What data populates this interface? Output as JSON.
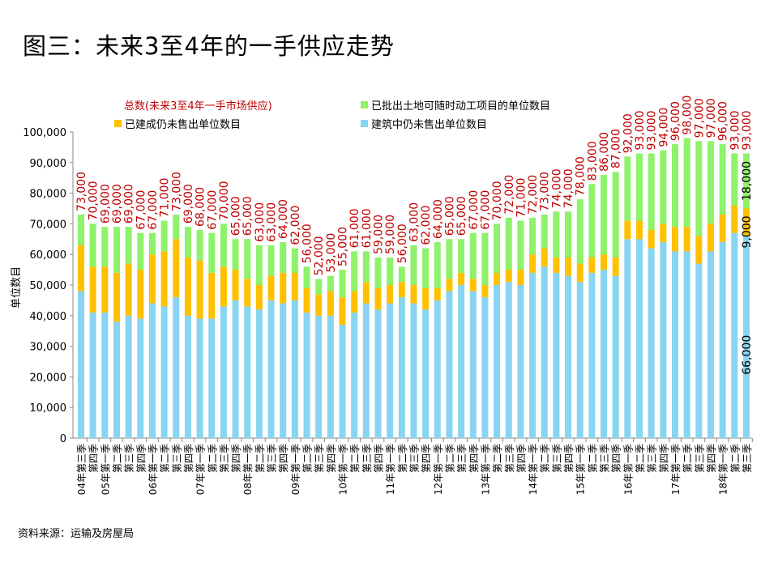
{
  "title": "图三：未来3至4年的一手供应走势",
  "source": "资料来源：运输及房屋局",
  "chart_data": {
    "type": "bar",
    "stacked": true,
    "title": "图三：未来3至4年的一手供应走势",
    "ylabel": "单位数目",
    "xlabel": "",
    "ylim": [
      0,
      100000
    ],
    "yticks": [
      "0",
      "10,000",
      "20,000",
      "30,000",
      "40,000",
      "50,000",
      "60,000",
      "70,000",
      "80,000",
      "90,000",
      "100,000"
    ],
    "grid": false,
    "legend_position": "top",
    "total_label": "总数(未来3至4年一手市场供应)",
    "colors": {
      "under_construction": "#87D5F2",
      "completed_unsold": "#FFC000",
      "approved_land": "#8EF26A",
      "total": "#C00000"
    },
    "categories": [
      "04年第三季",
      "第四季",
      "05年第一季",
      "第二季",
      "第三季",
      "第四季",
      "06年第一季",
      "第二季",
      "第三季",
      "第四季",
      "07年第一季",
      "第二季",
      "第三季",
      "第四季",
      "08年第一季",
      "第二季",
      "第三季",
      "第四季",
      "09年第一季",
      "第二季",
      "第三季",
      "第四季",
      "10年第一季",
      "第二季",
      "第三季",
      "第四季",
      "11年第一季",
      "第二季",
      "第三季",
      "第四季",
      "12年第一季",
      "第二季",
      "第三季",
      "第四季",
      "13年第一季",
      "第二季",
      "第三季",
      "第四季",
      "14年第一季",
      "第二季",
      "第三季",
      "第四季",
      "15年第一季",
      "第二季",
      "第三季",
      "第四季",
      "16年第一季",
      "第二季",
      "第三季",
      "第四季",
      "17年第一季",
      "第二季",
      "第三季",
      "第四季",
      "18年第一季",
      "第二季",
      "第三季"
    ],
    "series": [
      {
        "name": "建筑中仍未售出单位数目",
        "key": "under_construction",
        "values": [
          48000,
          41000,
          41000,
          38000,
          40000,
          39000,
          44000,
          43000,
          46000,
          40000,
          39000,
          39000,
          43000,
          45000,
          43000,
          42000,
          45000,
          44000,
          45000,
          41000,
          40000,
          40000,
          37000,
          41000,
          44000,
          42000,
          44000,
          46000,
          44000,
          42000,
          45000,
          48000,
          50000,
          48000,
          46000,
          50000,
          51000,
          50000,
          54000,
          56000,
          54000,
          53000,
          51000,
          54000,
          55000,
          53000,
          65000,
          65000,
          62000,
          64000,
          61000,
          61000,
          57000,
          61000,
          64000,
          67000,
          66000
        ]
      },
      {
        "name": "已建成仍未售出单位数目",
        "key": "completed_unsold",
        "values": [
          15000,
          15000,
          15000,
          16000,
          17000,
          16000,
          16000,
          18000,
          19000,
          19000,
          19000,
          15000,
          13000,
          10000,
          9000,
          8000,
          8000,
          10000,
          9000,
          8000,
          7000,
          8000,
          9000,
          7000,
          7000,
          7000,
          6000,
          5000,
          6000,
          7000,
          4000,
          4000,
          4000,
          4000,
          4000,
          4000,
          4000,
          5000,
          6000,
          6000,
          5000,
          6000,
          6000,
          5000,
          5000,
          6000,
          6000,
          6000,
          6000,
          6000,
          8000,
          8000,
          9000,
          9000,
          9000,
          9000,
          9000
        ]
      },
      {
        "name": "已批出土地可随时动工项目的单位数目",
        "key": "approved_land",
        "values": [
          10000,
          14000,
          13000,
          15000,
          12000,
          12000,
          7000,
          10000,
          8000,
          10000,
          10000,
          13000,
          14000,
          10000,
          13000,
          13000,
          10000,
          10000,
          8000,
          7000,
          5000,
          5000,
          9000,
          13000,
          10000,
          10000,
          9000,
          5000,
          13000,
          13000,
          15000,
          13000,
          11000,
          15000,
          17000,
          16000,
          17000,
          16000,
          12000,
          11000,
          15000,
          15000,
          21000,
          24000,
          26000,
          28000,
          21000,
          22000,
          25000,
          24000,
          27000,
          29000,
          31000,
          27000,
          23000,
          17000,
          18000
        ]
      }
    ],
    "totals": [
      "73,000",
      "70,000",
      "69,000",
      "69,000",
      "69,000",
      "67,000",
      "67,000",
      "71,000",
      "73,000",
      "69,000",
      "68,000",
      "67,000",
      "70,000",
      "65,000",
      "65,000",
      "63,000",
      "63,000",
      "64,000",
      "62,000",
      "56,000",
      "52,000",
      "53,000",
      "55,000",
      "61,000",
      "61,000",
      "59,000",
      "59,000",
      "56,000",
      "63,000",
      "62,000",
      "64,000",
      "65,000",
      "65,000",
      "67,000",
      "67,000",
      "70,000",
      "72,000",
      "71,000",
      "72,000",
      "73,000",
      "74,000",
      "74,000",
      "78,000",
      "83,000",
      "86,000",
      "87,000",
      "92,000",
      "93,000",
      "93,000",
      "94,000",
      "96,000",
      "98,000",
      "97,000",
      "97,000",
      "96,000",
      "93,000",
      "93,000"
    ],
    "last_bar_labels": {
      "under_construction": "66,000",
      "completed_unsold": "9,000",
      "approved_land": "18,000"
    }
  }
}
